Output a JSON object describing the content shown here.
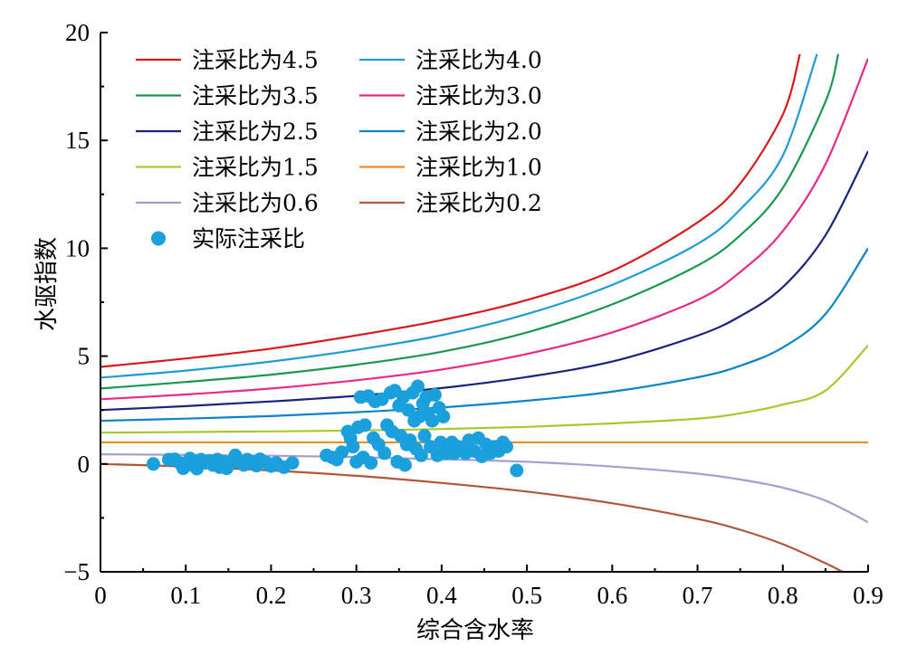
{
  "chart_data": {
    "type": "line",
    "xlabel": "综合含水率",
    "ylabel": "水驱指数",
    "xlim": [
      0,
      0.9
    ],
    "ylim": [
      -5,
      20
    ],
    "x_ticks": [
      "0",
      "0.1",
      "0.2",
      "0.3",
      "0.4",
      "0.5",
      "0.6",
      "0.7",
      "0.8",
      "0.9"
    ],
    "y_ticks": [
      "−5",
      "0",
      "5",
      "10",
      "15",
      "20"
    ],
    "grid": false,
    "legend_position": "top-left",
    "series": [
      {
        "name": "注采比为4.5",
        "ratio": 4.5,
        "color": "#d7191c",
        "x": [
          0,
          0.1,
          0.2,
          0.3,
          0.4,
          0.5,
          0.6,
          0.7,
          0.75,
          0.8,
          0.82
        ],
        "y": [
          4.5,
          4.89,
          5.35,
          5.96,
          6.67,
          7.6,
          8.95,
          11.2,
          13.0,
          16.2,
          19.0
        ]
      },
      {
        "name": "注采比为4.0",
        "ratio": 4.0,
        "color": "#1f9bd7",
        "x": [
          0,
          0.1,
          0.2,
          0.3,
          0.4,
          0.5,
          0.6,
          0.7,
          0.75,
          0.8,
          0.84
        ],
        "y": [
          4.0,
          4.33,
          4.75,
          5.29,
          5.97,
          6.95,
          8.3,
          10.2,
          11.8,
          14.3,
          19.0
        ]
      },
      {
        "name": "注采比为3.5",
        "ratio": 3.5,
        "color": "#1a9850",
        "x": [
          0,
          0.1,
          0.2,
          0.3,
          0.4,
          0.5,
          0.6,
          0.7,
          0.75,
          0.8,
          0.85,
          0.865
        ],
        "y": [
          3.5,
          3.8,
          4.14,
          4.6,
          5.2,
          6.1,
          7.4,
          9.2,
          10.6,
          12.8,
          16.8,
          19.0
        ]
      },
      {
        "name": "注采比为3.0",
        "ratio": 3.0,
        "color": "#e7298a",
        "x": [
          0,
          0.1,
          0.2,
          0.3,
          0.4,
          0.5,
          0.6,
          0.7,
          0.75,
          0.8,
          0.85,
          0.9
        ],
        "y": [
          3.0,
          3.22,
          3.5,
          3.88,
          4.38,
          5.1,
          6.1,
          7.6,
          8.9,
          10.8,
          13.9,
          18.8
        ]
      },
      {
        "name": "注采比为2.5",
        "ratio": 2.5,
        "color": "#1a237e",
        "x": [
          0,
          0.1,
          0.2,
          0.3,
          0.4,
          0.5,
          0.6,
          0.7,
          0.75,
          0.8,
          0.85,
          0.9
        ],
        "y": [
          2.5,
          2.68,
          2.9,
          3.16,
          3.52,
          4.03,
          4.75,
          5.95,
          6.85,
          8.2,
          10.6,
          14.5
        ]
      },
      {
        "name": "注采比为2.0",
        "ratio": 2.0,
        "color": "#0a83c7",
        "x": [
          0,
          0.1,
          0.2,
          0.3,
          0.4,
          0.5,
          0.6,
          0.7,
          0.75,
          0.8,
          0.85,
          0.9
        ],
        "y": [
          2.0,
          2.1,
          2.22,
          2.4,
          2.62,
          2.93,
          3.35,
          4.02,
          4.55,
          5.4,
          6.95,
          10.0
        ]
      },
      {
        "name": "注采比为1.5",
        "ratio": 1.5,
        "color": "#a6c92e",
        "x": [
          0,
          0.1,
          0.2,
          0.3,
          0.4,
          0.5,
          0.6,
          0.7,
          0.75,
          0.8,
          0.85,
          0.9
        ],
        "y": [
          1.45,
          1.48,
          1.51,
          1.55,
          1.62,
          1.72,
          1.88,
          2.1,
          2.35,
          2.75,
          3.4,
          5.5
        ]
      },
      {
        "name": "注采比为1.0",
        "ratio": 1.0,
        "color": "#f08c1e",
        "x": [
          0,
          0.9
        ],
        "y": [
          1.0,
          1.0
        ]
      },
      {
        "name": "注采比为0.6",
        "ratio": 0.6,
        "color": "#a59fd0",
        "x": [
          0,
          0.1,
          0.2,
          0.3,
          0.4,
          0.5,
          0.6,
          0.7,
          0.75,
          0.8,
          0.85,
          0.9
        ],
        "y": [
          0.45,
          0.42,
          0.38,
          0.32,
          0.22,
          0.1,
          -0.12,
          -0.45,
          -0.72,
          -1.1,
          -1.7,
          -2.7
        ]
      },
      {
        "name": "注采比为0.2",
        "ratio": 0.2,
        "color": "#b0573a",
        "x": [
          0,
          0.1,
          0.2,
          0.3,
          0.4,
          0.5,
          0.6,
          0.7,
          0.75,
          0.8,
          0.85,
          0.87
        ],
        "y": [
          0.0,
          -0.12,
          -0.3,
          -0.55,
          -0.88,
          -1.28,
          -1.82,
          -2.55,
          -3.05,
          -3.72,
          -4.6,
          -5.0
        ]
      }
    ],
    "scatter": {
      "name": "实际注采比",
      "color": "#1ca0dd",
      "points": [
        [
          0.062,
          0.0
        ],
        [
          0.08,
          0.2
        ],
        [
          0.087,
          0.22
        ],
        [
          0.093,
          0.05
        ],
        [
          0.097,
          -0.2
        ],
        [
          0.105,
          0.25
        ],
        [
          0.11,
          -0.1
        ],
        [
          0.113,
          -0.22
        ],
        [
          0.118,
          0.2
        ],
        [
          0.123,
          0.05
        ],
        [
          0.128,
          0.15
        ],
        [
          0.132,
          -0.05
        ],
        [
          0.137,
          0.2
        ],
        [
          0.14,
          -0.15
        ],
        [
          0.145,
          0.1
        ],
        [
          0.148,
          -0.2
        ],
        [
          0.152,
          0.05
        ],
        [
          0.158,
          0.4
        ],
        [
          0.162,
          0.1
        ],
        [
          0.168,
          -0.05
        ],
        [
          0.172,
          0.2
        ],
        [
          0.178,
          0.1
        ],
        [
          0.183,
          -0.08
        ],
        [
          0.187,
          0.22
        ],
        [
          0.195,
          0.05
        ],
        [
          0.2,
          -0.1
        ],
        [
          0.206,
          0.05
        ],
        [
          0.215,
          -0.15
        ],
        [
          0.225,
          0.05
        ],
        [
          0.265,
          0.4
        ],
        [
          0.272,
          0.3
        ],
        [
          0.277,
          0.2
        ],
        [
          0.283,
          0.55
        ],
        [
          0.29,
          1.5
        ],
        [
          0.293,
          1.2
        ],
        [
          0.296,
          0.8
        ],
        [
          0.3,
          0.1
        ],
        [
          0.302,
          1.7
        ],
        [
          0.305,
          3.1
        ],
        [
          0.308,
          0.3
        ],
        [
          0.31,
          1.8
        ],
        [
          0.314,
          3.15
        ],
        [
          0.317,
          0.05
        ],
        [
          0.32,
          1.2
        ],
        [
          0.322,
          2.9
        ],
        [
          0.326,
          0.9
        ],
        [
          0.33,
          3.0
        ],
        [
          0.333,
          0.5
        ],
        [
          0.336,
          1.8
        ],
        [
          0.34,
          3.3
        ],
        [
          0.342,
          1.5
        ],
        [
          0.345,
          3.4
        ],
        [
          0.348,
          0.1
        ],
        [
          0.35,
          2.7
        ],
        [
          0.352,
          1.3
        ],
        [
          0.355,
          3.1
        ],
        [
          0.357,
          -0.05
        ],
        [
          0.359,
          0.9
        ],
        [
          0.361,
          2.5
        ],
        [
          0.363,
          1.1
        ],
        [
          0.366,
          3.3
        ],
        [
          0.368,
          2.0
        ],
        [
          0.37,
          0.7
        ],
        [
          0.372,
          3.6
        ],
        [
          0.374,
          2.2
        ],
        [
          0.376,
          0.4
        ],
        [
          0.378,
          2.8
        ],
        [
          0.38,
          1.3
        ],
        [
          0.382,
          3.1
        ],
        [
          0.384,
          2.3
        ],
        [
          0.387,
          0.8
        ],
        [
          0.389,
          2.0
        ],
        [
          0.392,
          3.2
        ],
        [
          0.395,
          0.4
        ],
        [
          0.397,
          2.6
        ],
        [
          0.399,
          1.0
        ],
        [
          0.402,
          2.2
        ],
        [
          0.405,
          0.5
        ],
        [
          0.408,
          0.6
        ],
        [
          0.412,
          1.0
        ],
        [
          0.415,
          0.5
        ],
        [
          0.42,
          0.8
        ],
        [
          0.428,
          0.5
        ],
        [
          0.432,
          1.1
        ],
        [
          0.438,
          0.6
        ],
        [
          0.443,
          1.2
        ],
        [
          0.447,
          0.35
        ],
        [
          0.452,
          0.9
        ],
        [
          0.457,
          0.5
        ],
        [
          0.462,
          0.8
        ],
        [
          0.467,
          0.6
        ],
        [
          0.472,
          1.0
        ],
        [
          0.476,
          0.8
        ],
        [
          0.488,
          -0.3
        ]
      ]
    }
  }
}
